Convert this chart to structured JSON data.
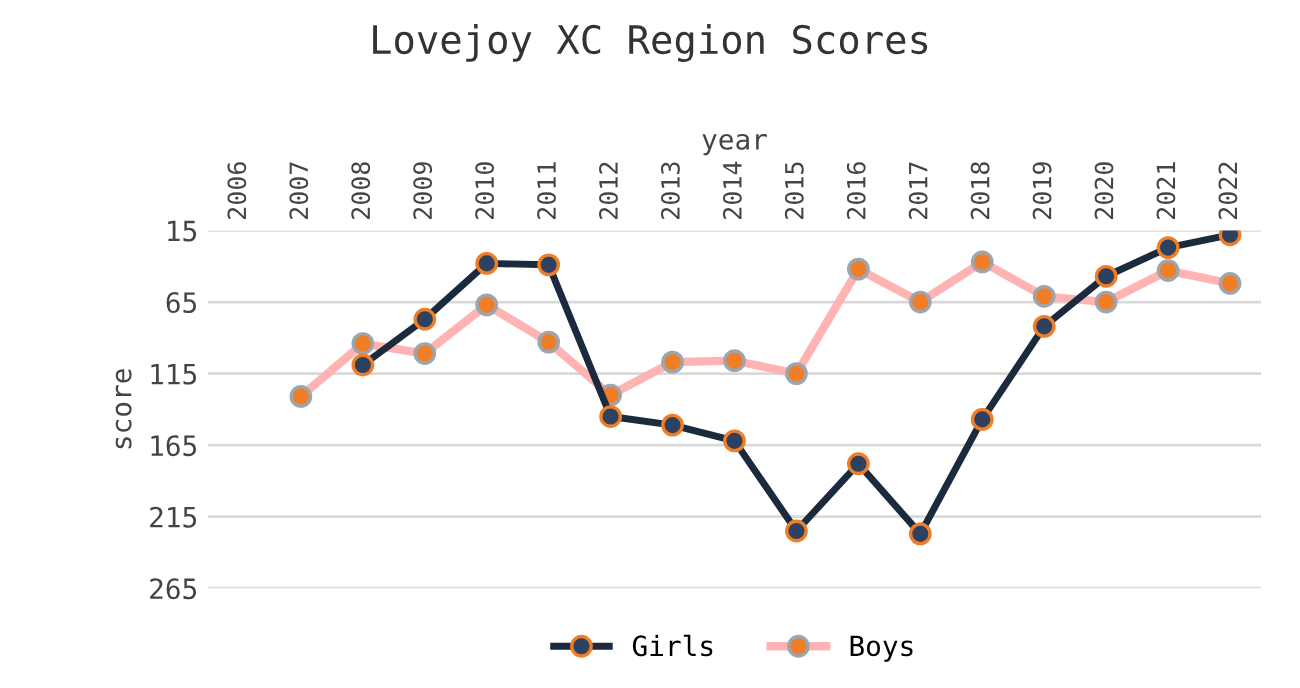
{
  "chart_data": {
    "type": "line",
    "title": "Lovejoy XC Region Scores",
    "xlabel": "year",
    "ylabel": "score",
    "categories": [
      "2006",
      "2007",
      "2008",
      "2009",
      "2010",
      "2011",
      "2012",
      "2013",
      "2014",
      "2015",
      "2016",
      "2017",
      "2018",
      "2019",
      "2020",
      "2021",
      "2022"
    ],
    "series": [
      {
        "name": "Girls",
        "color": "#1c2a3e",
        "values": [
          null,
          null,
          109,
          77,
          38,
          39,
          145,
          151,
          162,
          225,
          178,
          227,
          147,
          82,
          47,
          27,
          18
        ]
      },
      {
        "name": "Boys",
        "color": "#ffb3b3",
        "values": [
          null,
          131,
          94,
          101,
          67,
          93,
          130,
          107,
          106,
          115,
          42,
          65,
          37,
          61,
          65,
          43,
          52
        ]
      }
    ],
    "ylim": [
      265,
      15
    ],
    "yticks": [
      15,
      65,
      115,
      165,
      215,
      265
    ],
    "grid": "y",
    "legend": "bottom",
    "marker": "circle"
  }
}
